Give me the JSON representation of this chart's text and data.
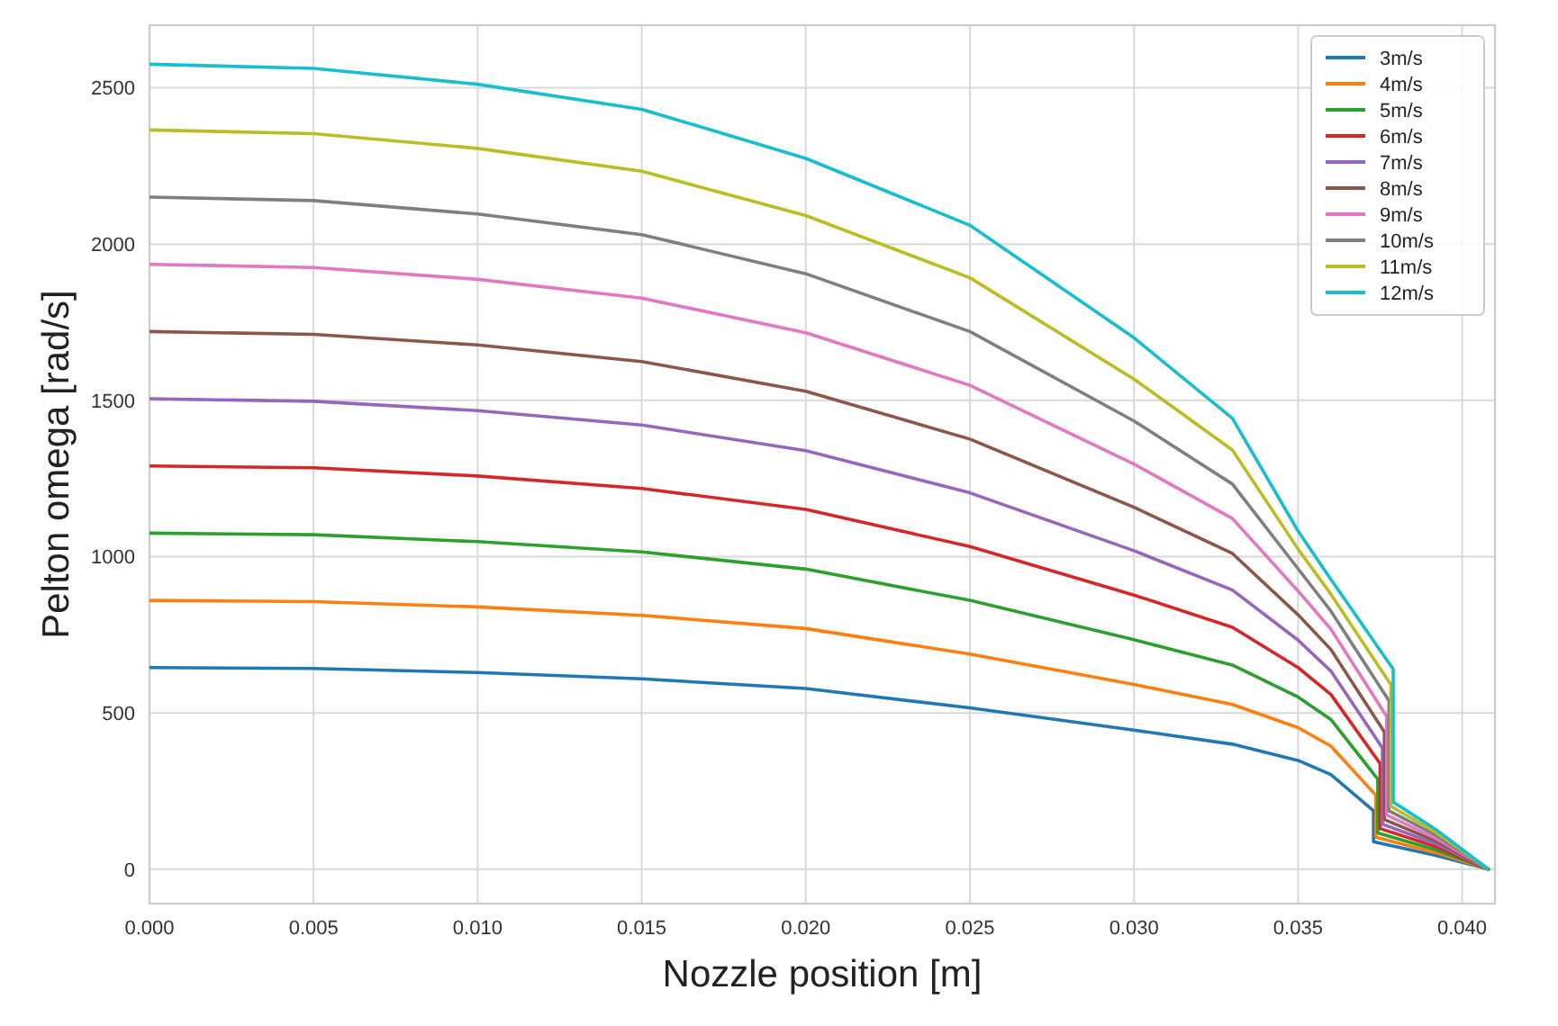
{
  "chart_data": {
    "type": "line",
    "xlabel": "Nozzle position [m]",
    "ylabel": "Pelton omega [rad/s]",
    "xlim": [
      0,
      0.041
    ],
    "ylim": [
      -110,
      2700
    ],
    "xticks": [
      {
        "value": 0,
        "label": "0.000"
      },
      {
        "value": 0.005,
        "label": "0.005"
      },
      {
        "value": 0.01,
        "label": "0.010"
      },
      {
        "value": 0.015,
        "label": "0.015"
      },
      {
        "value": 0.02,
        "label": "0.020"
      },
      {
        "value": 0.025,
        "label": "0.025"
      },
      {
        "value": 0.03,
        "label": "0.030"
      },
      {
        "value": 0.035,
        "label": "0.035"
      },
      {
        "value": 0.04,
        "label": "0.040"
      }
    ],
    "yticks": [
      0,
      500,
      1000,
      1500,
      2000,
      2500
    ],
    "grid": true,
    "legend": "top right",
    "marker": "none",
    "line_style": "solid",
    "series": [
      {
        "name": "3m/s",
        "color": "#1f77b4",
        "x": [
          0,
          0.005,
          0.01,
          0.015,
          0.02,
          0.025,
          0.03,
          0.033,
          0.035,
          0.036,
          0.0373,
          0.0373,
          0.0392,
          0.0408
        ],
        "values": [
          645,
          642,
          629,
          609,
          578,
          516,
          445,
          400,
          348,
          303,
          187,
          88,
          44,
          0
        ]
      },
      {
        "name": "4m/s",
        "color": "#ff7f0e",
        "x": [
          0,
          0.005,
          0.01,
          0.015,
          0.02,
          0.025,
          0.03,
          0.033,
          0.035,
          0.036,
          0.03737,
          0.03737,
          0.0392,
          0.0408
        ],
        "values": [
          860,
          856,
          839,
          812,
          770,
          688,
          591,
          527,
          453,
          394,
          237,
          102,
          53,
          0
        ]
      },
      {
        "name": "5m/s",
        "color": "#2ca02c",
        "x": [
          0,
          0.005,
          0.01,
          0.015,
          0.02,
          0.025,
          0.03,
          0.033,
          0.035,
          0.036,
          0.03743,
          0.03743,
          0.0392,
          0.0408
        ],
        "values": [
          1075,
          1070,
          1048,
          1015,
          960,
          860,
          734,
          653,
          551,
          479,
          288,
          116,
          62,
          0
        ]
      },
      {
        "name": "6m/s",
        "color": "#d62728",
        "x": [
          0,
          0.005,
          0.01,
          0.015,
          0.02,
          0.025,
          0.03,
          0.033,
          0.035,
          0.036,
          0.0375,
          0.0375,
          0.0392,
          0.0408
        ],
        "values": [
          1290,
          1284,
          1258,
          1218,
          1151,
          1032,
          877,
          774,
          645,
          559,
          338,
          130,
          72,
          0
        ]
      },
      {
        "name": "7m/s",
        "color": "#9467bd",
        "x": [
          0,
          0.005,
          0.01,
          0.015,
          0.02,
          0.025,
          0.03,
          0.033,
          0.035,
          0.036,
          0.03757,
          0.03757,
          0.0392,
          0.0408
        ],
        "values": [
          1505,
          1497,
          1467,
          1421,
          1339,
          1204,
          1019,
          893,
          733,
          634,
          388,
          144,
          81,
          0
        ]
      },
      {
        "name": "8m/s",
        "color": "#8c564b",
        "x": [
          0,
          0.005,
          0.01,
          0.015,
          0.02,
          0.025,
          0.03,
          0.033,
          0.035,
          0.036,
          0.03763,
          0.03763,
          0.0392,
          0.0408
        ],
        "values": [
          1720,
          1711,
          1677,
          1624,
          1529,
          1376,
          1158,
          1010,
          814,
          703,
          439,
          159,
          90,
          0
        ]
      },
      {
        "name": "9m/s",
        "color": "#e377c2",
        "x": [
          0,
          0.005,
          0.01,
          0.015,
          0.02,
          0.025,
          0.03,
          0.033,
          0.035,
          0.036,
          0.0377,
          0.0377,
          0.0392,
          0.0408
        ],
        "values": [
          1935,
          1925,
          1887,
          1827,
          1716,
          1548,
          1296,
          1122,
          890,
          768,
          489,
          173,
          99,
          0
        ]
      },
      {
        "name": "10m/s",
        "color": "#7f7f7f",
        "x": [
          0,
          0.005,
          0.01,
          0.015,
          0.02,
          0.025,
          0.03,
          0.033,
          0.035,
          0.036,
          0.03777,
          0.03777,
          0.0392,
          0.0408
        ],
        "values": [
          2150,
          2139,
          2096,
          2030,
          1905,
          1720,
          1434,
          1232,
          961,
          826,
          539,
          187,
          109,
          0
        ]
      },
      {
        "name": "11m/s",
        "color": "#bcbd22",
        "x": [
          0,
          0.005,
          0.01,
          0.015,
          0.02,
          0.025,
          0.03,
          0.033,
          0.035,
          0.036,
          0.03783,
          0.03783,
          0.0392,
          0.0408
        ],
        "values": [
          2365,
          2353,
          2306,
          2233,
          2091,
          1892,
          1568,
          1341,
          1024,
          880,
          590,
          201,
          118,
          0
        ]
      },
      {
        "name": "12m/s",
        "color": "#17becf",
        "x": [
          0,
          0.005,
          0.01,
          0.015,
          0.02,
          0.025,
          0.03,
          0.033,
          0.035,
          0.036,
          0.0379,
          0.0379,
          0.0392,
          0.0408
        ],
        "values": [
          2575,
          2562,
          2511,
          2431,
          2274,
          2060,
          1700,
          1442,
          1082,
          927,
          640,
          215,
          127,
          0
        ]
      }
    ]
  }
}
